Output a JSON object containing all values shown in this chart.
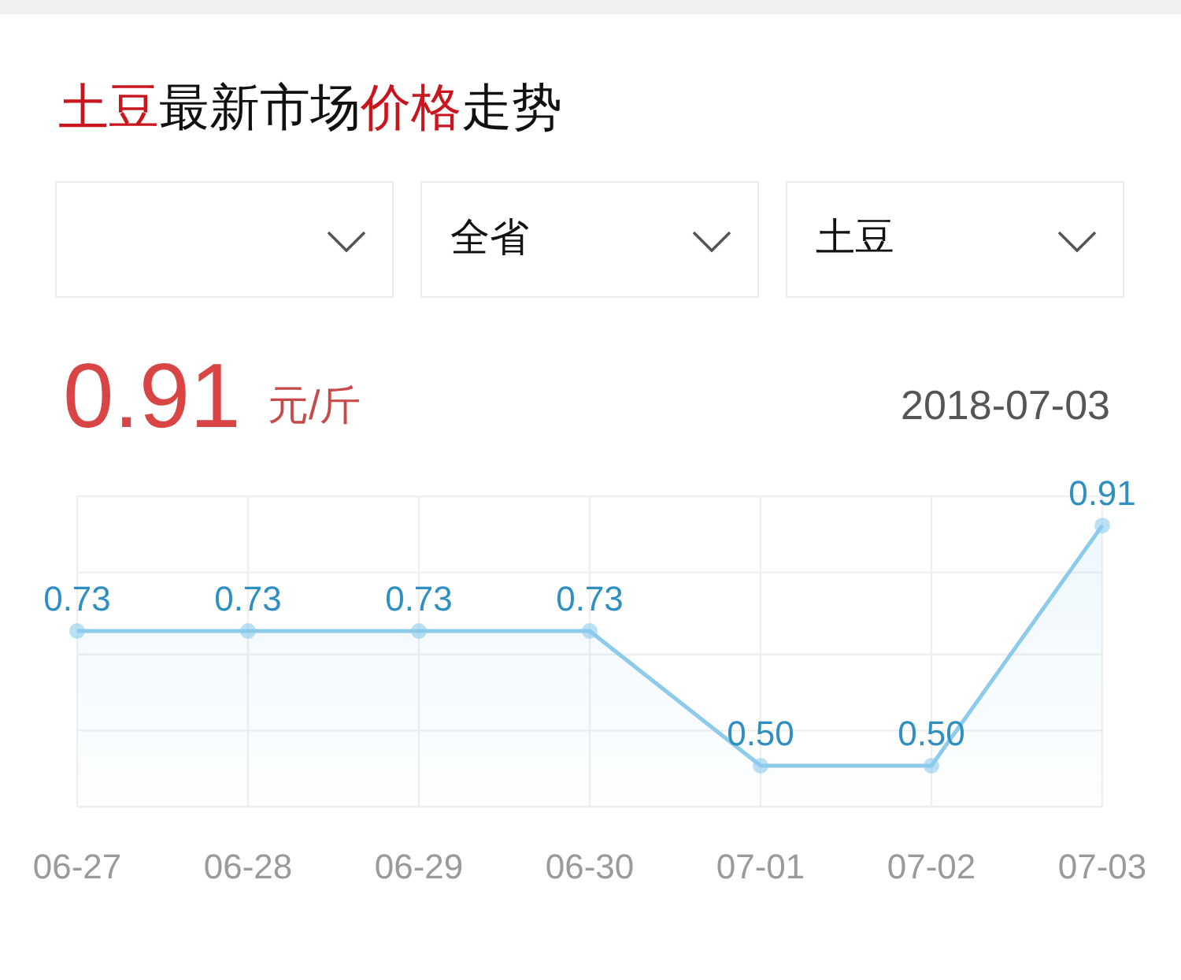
{
  "chart_data": {
    "type": "area",
    "title": "土豆最新市场价格走势",
    "annotations": [
      "全省",
      "土豆",
      "0.91",
      "元/斤",
      "2018-07-03"
    ],
    "categories": [
      "06-27",
      "06-28",
      "06-29",
      "06-30",
      "07-01",
      "07-02",
      "07-03"
    ],
    "values": [
      0.73,
      0.73,
      0.73,
      0.73,
      0.5,
      0.5,
      0.91
    ],
    "value_labels": [
      "0.73",
      "0.73",
      "0.73",
      "0.73",
      "0.50",
      "0.50",
      "0.91"
    ],
    "ylim": [
      0.43,
      0.96
    ],
    "yticks": [
      {
        "value": 0.43,
        "label": null
      },
      {
        "value": 0.56,
        "label": null
      },
      {
        "value": 0.69,
        "label": null
      },
      {
        "value": 0.83,
        "label": null
      },
      {
        "value": 0.96,
        "label": null
      }
    ],
    "color": "#8ccbeb",
    "marker": "circle",
    "line_style": "solid",
    "grid": true,
    "tick_labels": "x"
  }
}
